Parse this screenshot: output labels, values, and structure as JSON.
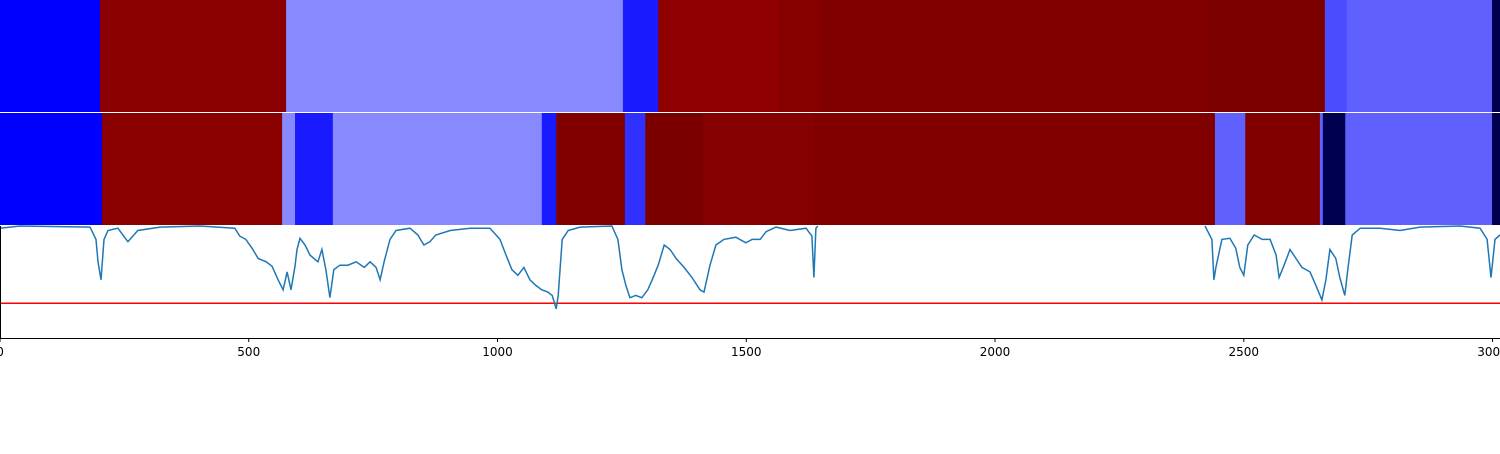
{
  "chart_data": {
    "type": "segmentation",
    "xlim": [
      0,
      3015
    ],
    "xticks": [
      0,
      500,
      1000,
      1500,
      2000,
      2500,
      3000
    ],
    "rows": [
      {
        "segments": [
          {
            "start": 0,
            "end": 201,
            "color": "#0000ff"
          },
          {
            "start": 201,
            "end": 575,
            "color": "#8b0000"
          },
          {
            "start": 575,
            "end": 1252,
            "color": "#8888ff"
          },
          {
            "start": 1252,
            "end": 1323,
            "color": "#1a1aff"
          },
          {
            "start": 1323,
            "end": 1566,
            "color": "#900000"
          },
          {
            "start": 1566,
            "end": 1650,
            "color": "#860000"
          },
          {
            "start": 1650,
            "end": 2432,
            "color": "#800000"
          },
          {
            "start": 2432,
            "end": 2663,
            "color": "#7d0000"
          },
          {
            "start": 2663,
            "end": 2707,
            "color": "#4c4cff"
          },
          {
            "start": 2707,
            "end": 2999,
            "color": "#6060ff"
          },
          {
            "start": 2999,
            "end": 3015,
            "color": "#000050"
          }
        ]
      },
      {
        "segments": [
          {
            "start": 0,
            "end": 205,
            "color": "#0000ff"
          },
          {
            "start": 205,
            "end": 567,
            "color": "#8b0000"
          },
          {
            "start": 567,
            "end": 593,
            "color": "#8888ff"
          },
          {
            "start": 593,
            "end": 669,
            "color": "#1a1aff"
          },
          {
            "start": 669,
            "end": 1089,
            "color": "#8888ff"
          },
          {
            "start": 1089,
            "end": 1118,
            "color": "#1a1aff"
          },
          {
            "start": 1118,
            "end": 1256,
            "color": "#800000"
          },
          {
            "start": 1256,
            "end": 1297,
            "color": "#3030ff"
          },
          {
            "start": 1297,
            "end": 1413,
            "color": "#7a0000"
          },
          {
            "start": 1413,
            "end": 1638,
            "color": "#850000"
          },
          {
            "start": 1638,
            "end": 2442,
            "color": "#800000"
          },
          {
            "start": 2442,
            "end": 2503,
            "color": "#6060ff"
          },
          {
            "start": 2503,
            "end": 2653,
            "color": "#800000"
          },
          {
            "start": 2653,
            "end": 2659,
            "color": "#6060ff"
          },
          {
            "start": 2659,
            "end": 2704,
            "color": "#000050"
          },
          {
            "start": 2704,
            "end": 2999,
            "color": "#6060ff"
          },
          {
            "start": 2999,
            "end": 3015,
            "color": "#000050"
          }
        ]
      }
    ],
    "ylim": [
      0,
      1
    ],
    "line": {
      "color": "#1f77b4",
      "x": [
        0,
        40,
        181,
        193,
        197,
        203,
        209,
        217,
        237,
        257,
        277,
        322,
        402,
        472,
        482,
        494,
        507,
        519,
        535,
        547,
        559,
        569,
        577,
        585,
        593,
        597,
        603,
        613,
        623,
        639,
        647,
        655,
        663,
        671,
        683,
        699,
        716,
        732,
        744,
        756,
        764,
        772,
        784,
        796,
        824,
        840,
        852,
        864,
        876,
        905,
        945,
        985,
        1005,
        1017,
        1029,
        1041,
        1053,
        1065,
        1077,
        1089,
        1101,
        1110,
        1118,
        1122,
        1130,
        1142,
        1166,
        1230,
        1242,
        1250,
        1258,
        1266,
        1278,
        1290,
        1302,
        1311,
        1323,
        1335,
        1347,
        1359,
        1375,
        1391,
        1407,
        1415,
        1427,
        1439,
        1455,
        1479,
        1499,
        1512,
        1528,
        1540,
        1560,
        1588,
        1620,
        1632,
        1636,
        1640,
        1644,
        2000,
        2422,
        2436,
        2440,
        2444,
        2456,
        2472,
        2484,
        2492,
        2500,
        2508,
        2521,
        2537,
        2553,
        2565,
        2571,
        2581,
        2593,
        2605,
        2617,
        2633,
        2645,
        2657,
        2665,
        2673,
        2685,
        2693,
        2703,
        2709,
        2718,
        2734,
        2774,
        2814,
        2854,
        2935,
        2975,
        2989,
        2997,
        3005,
        3015
      ],
      "values": [
        0.98,
        1.0,
        0.99,
        0.88,
        0.68,
        0.52,
        0.88,
        0.96,
        0.98,
        0.86,
        0.96,
        0.99,
        1.0,
        0.98,
        0.91,
        0.88,
        0.8,
        0.71,
        0.68,
        0.64,
        0.52,
        0.43,
        0.59,
        0.43,
        0.64,
        0.79,
        0.89,
        0.83,
        0.74,
        0.68,
        0.79,
        0.61,
        0.36,
        0.61,
        0.65,
        0.65,
        0.68,
        0.63,
        0.68,
        0.63,
        0.52,
        0.68,
        0.88,
        0.96,
        0.98,
        0.92,
        0.83,
        0.86,
        0.92,
        0.96,
        0.98,
        0.98,
        0.88,
        0.74,
        0.61,
        0.56,
        0.63,
        0.52,
        0.47,
        0.43,
        0.41,
        0.38,
        0.26,
        0.38,
        0.88,
        0.96,
        0.99,
        1.0,
        0.88,
        0.61,
        0.47,
        0.36,
        0.38,
        0.36,
        0.43,
        0.52,
        0.65,
        0.83,
        0.79,
        0.71,
        0.63,
        0.54,
        0.43,
        0.41,
        0.65,
        0.83,
        0.88,
        0.9,
        0.85,
        0.88,
        0.88,
        0.95,
        0.99,
        0.96,
        0.98,
        0.91,
        0.54,
        0.98,
        1.0,
        null,
        1.0,
        0.88,
        0.52,
        0.63,
        0.88,
        0.89,
        0.8,
        0.63,
        0.56,
        0.83,
        0.92,
        0.88,
        0.88,
        0.74,
        0.54,
        0.65,
        0.79,
        0.71,
        0.63,
        0.59,
        0.47,
        0.34,
        0.52,
        0.79,
        0.71,
        0.54,
        0.38,
        0.61,
        0.92,
        0.98,
        0.98,
        0.96,
        0.99,
        1.0,
        0.98,
        0.88,
        0.54,
        0.88,
        0.92
      ]
    },
    "threshold": {
      "value": 0.31,
      "color": "#ff0000"
    }
  }
}
